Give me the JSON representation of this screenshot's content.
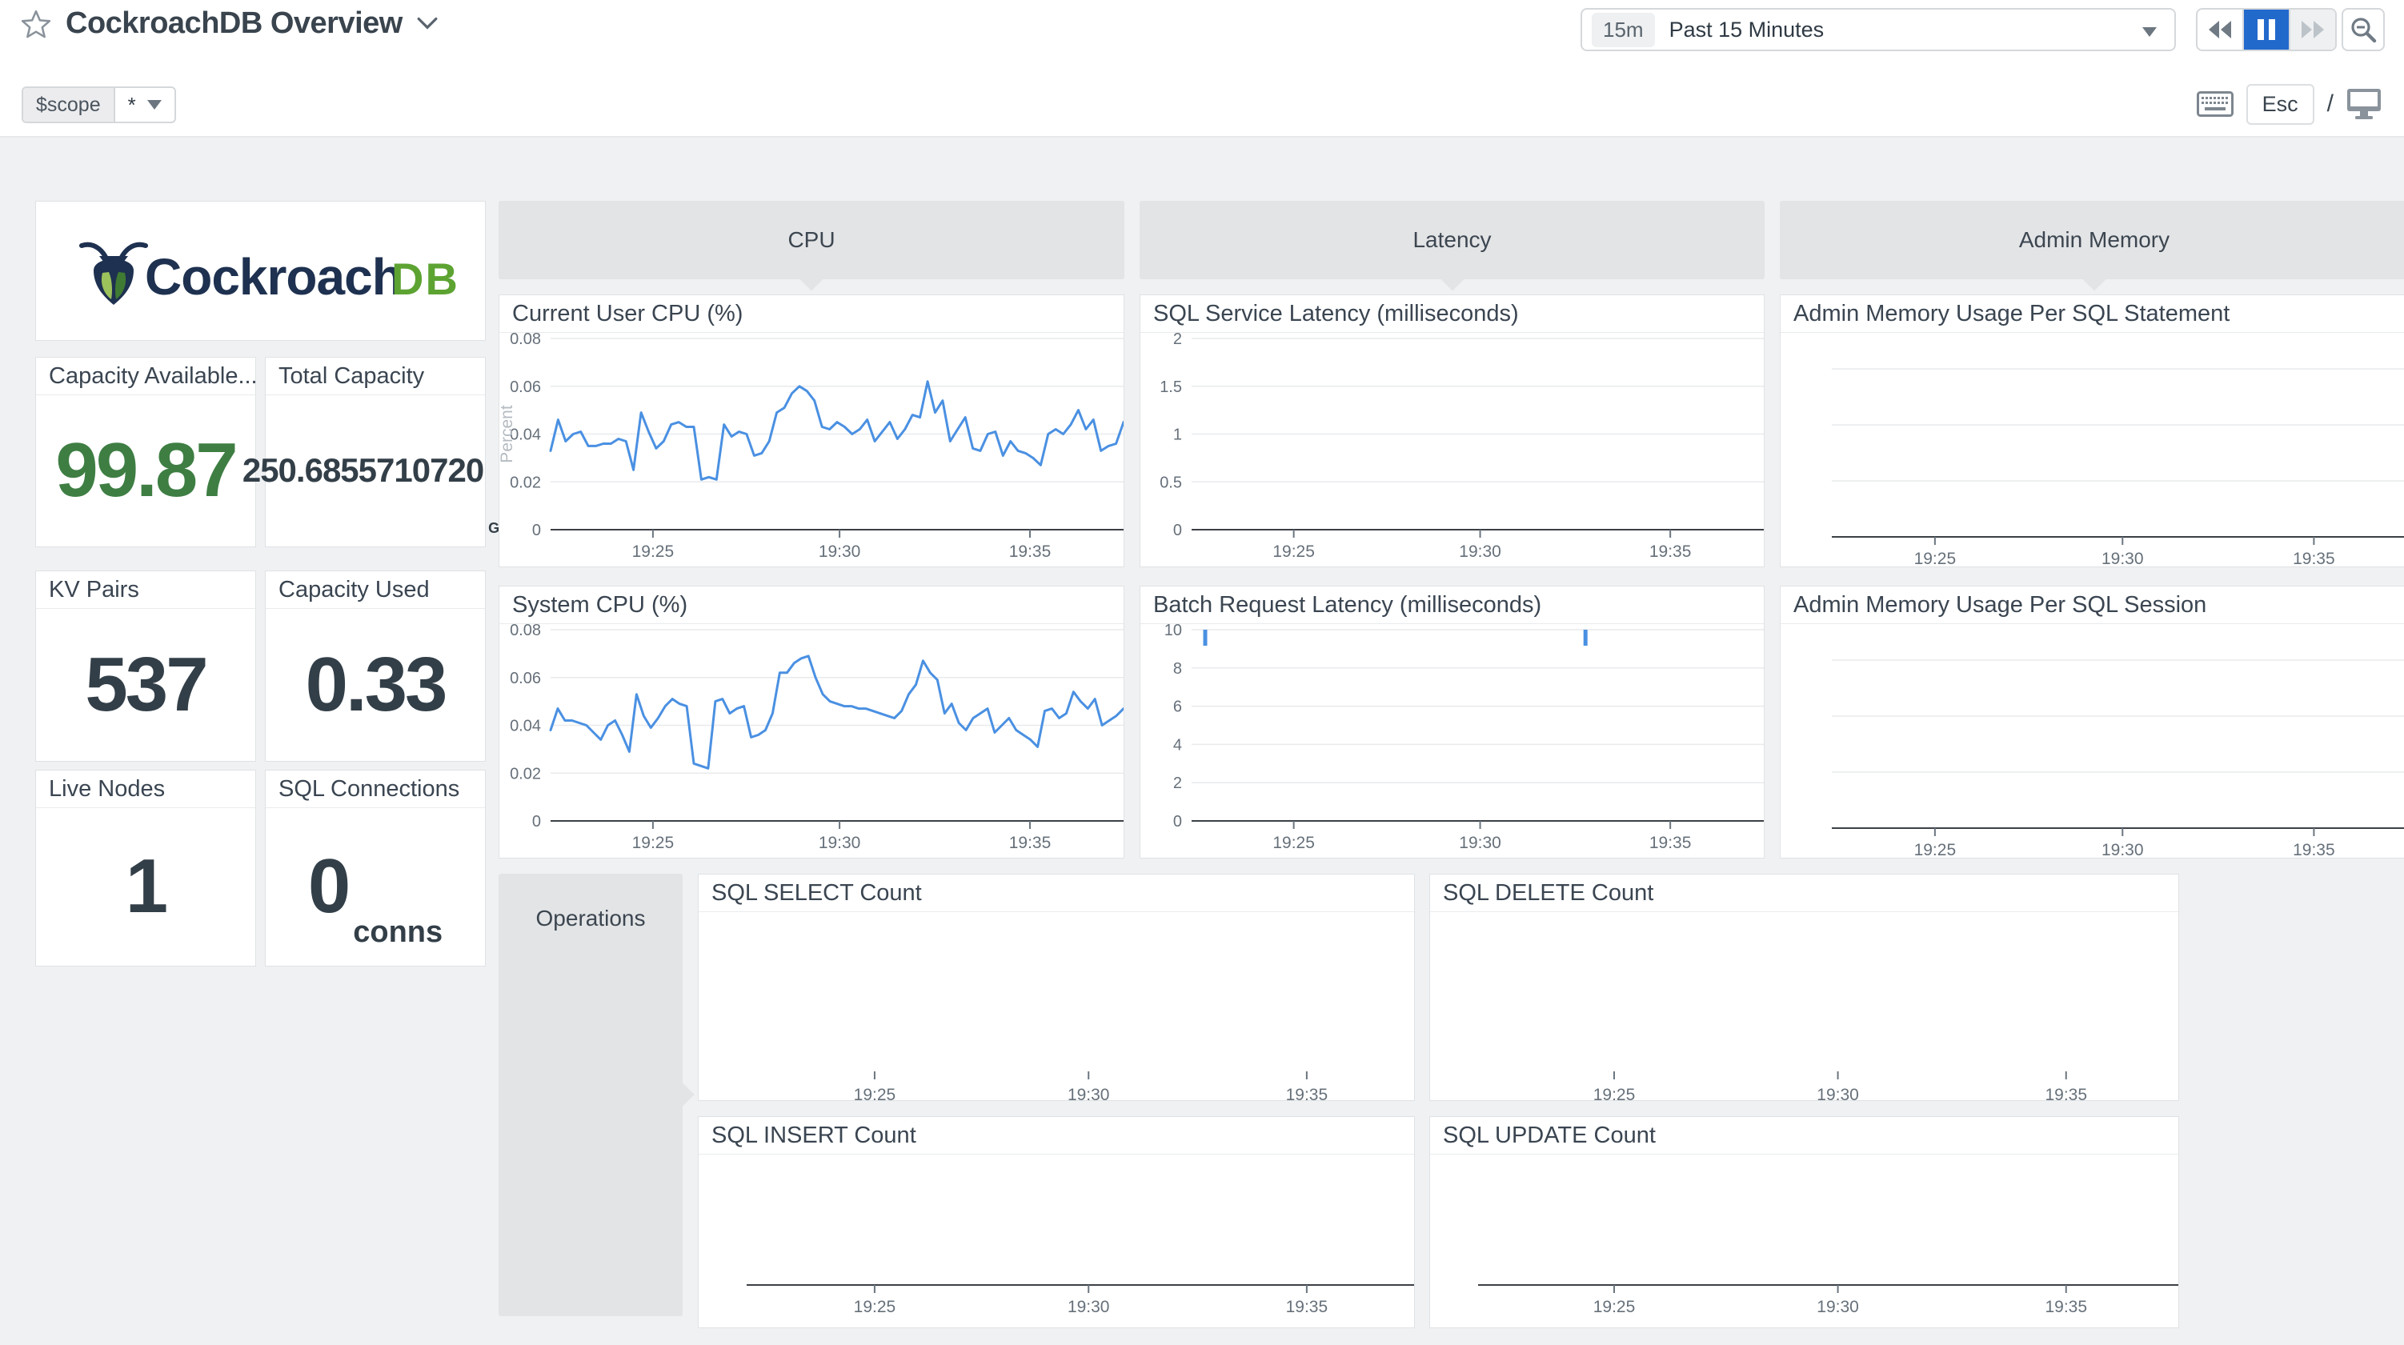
{
  "header": {
    "title": "CockroachDB Overview",
    "time_picker": {
      "badge": "15m",
      "label": "Past 15 Minutes"
    },
    "esc_label": "Esc",
    "slash": "/"
  },
  "template_var": {
    "name": "$scope",
    "value": "*"
  },
  "logo": {
    "word": "Cockroach",
    "suffix": "DB"
  },
  "colors": {
    "accent_blue": "#2269cc",
    "line_blue": "#4a90e2",
    "value_green": "#3e7e43",
    "navy_text": "#333f48",
    "logo_navy": "#1e3150",
    "logo_green": "#5da332"
  },
  "stat_cards": [
    {
      "title": "Capacity Available...",
      "value": "99.87"
    },
    {
      "title": "Total Capacity",
      "value": "250.6855710720",
      "unit": "GB"
    },
    {
      "title": "KV Pairs",
      "value": "537"
    },
    {
      "title": "Capacity Used",
      "value": "0.33"
    },
    {
      "title": "Live Nodes",
      "value": "1"
    },
    {
      "title": "SQL Connections",
      "value": "0",
      "unit": "conns"
    }
  ],
  "groups": {
    "cpu": "CPU",
    "latency": "Latency",
    "admin_memory": "Admin Memory",
    "operations": "Operations"
  },
  "chart_data": [
    {
      "type": "line",
      "kind": "labeled",
      "title": "Current User CPU (%)",
      "ylabel": "Percent",
      "yticks": [
        "0.08",
        "0.06",
        "0.04",
        "0.02",
        "0"
      ],
      "ymax": 0.08,
      "ylim": [
        0,
        0.08
      ],
      "xticks": [
        "19:25",
        "19:30",
        "19:35"
      ],
      "series": [
        0.033,
        0.046,
        0.037,
        0.04,
        0.041,
        0.035,
        0.035,
        0.036,
        0.036,
        0.038,
        0.037,
        0.025,
        0.049,
        0.041,
        0.034,
        0.037,
        0.044,
        0.045,
        0.043,
        0.043,
        0.021,
        0.022,
        0.021,
        0.044,
        0.039,
        0.041,
        0.04,
        0.031,
        0.032,
        0.037,
        0.049,
        0.051,
        0.057,
        0.06,
        0.058,
        0.054,
        0.043,
        0.042,
        0.045,
        0.043,
        0.04,
        0.042,
        0.046,
        0.037,
        0.041,
        0.045,
        0.038,
        0.042,
        0.048,
        0.047,
        0.062,
        0.049,
        0.054,
        0.037,
        0.042,
        0.047,
        0.034,
        0.033,
        0.04,
        0.041,
        0.031,
        0.037,
        0.033,
        0.032,
        0.03,
        0.027,
        0.04,
        0.042,
        0.04,
        0.044,
        0.05,
        0.042,
        0.046,
        0.033,
        0.035,
        0.036,
        0.045
      ]
    },
    {
      "type": "line",
      "kind": "labeled",
      "title": "System CPU (%)",
      "yticks": [
        "0.08",
        "0.06",
        "0.04",
        "0.02",
        "0"
      ],
      "ymax": 0.08,
      "ylim": [
        0,
        0.08
      ],
      "xticks": [
        "19:25",
        "19:30",
        "19:35"
      ],
      "series": [
        0.038,
        0.047,
        0.042,
        0.042,
        0.041,
        0.04,
        0.037,
        0.034,
        0.04,
        0.042,
        0.036,
        0.029,
        0.053,
        0.044,
        0.039,
        0.043,
        0.048,
        0.051,
        0.049,
        0.048,
        0.024,
        0.023,
        0.022,
        0.05,
        0.051,
        0.045,
        0.047,
        0.048,
        0.035,
        0.036,
        0.038,
        0.045,
        0.062,
        0.062,
        0.066,
        0.068,
        0.069,
        0.06,
        0.053,
        0.05,
        0.049,
        0.048,
        0.048,
        0.047,
        0.047,
        0.046,
        0.045,
        0.044,
        0.043,
        0.046,
        0.053,
        0.057,
        0.067,
        0.062,
        0.059,
        0.045,
        0.049,
        0.041,
        0.038,
        0.043,
        0.045,
        0.047,
        0.037,
        0.04,
        0.043,
        0.038,
        0.036,
        0.034,
        0.031,
        0.046,
        0.047,
        0.043,
        0.045,
        0.054,
        0.05,
        0.047,
        0.051,
        0.04,
        0.042,
        0.044,
        0.047
      ]
    },
    {
      "type": "line",
      "kind": "labeled",
      "title": "SQL Service Latency (milliseconds)",
      "yticks": [
        "2",
        "1.5",
        "1",
        "0.5",
        "0"
      ],
      "ymax": 2,
      "ylim": [
        0,
        2
      ],
      "xticks": [
        "19:25",
        "19:30",
        "19:35"
      ],
      "series": []
    },
    {
      "type": "line",
      "kind": "labeled",
      "title": "Batch Request Latency (milliseconds)",
      "yticks": [
        "10",
        "8",
        "6",
        "4",
        "2",
        "0"
      ],
      "ymax": 10,
      "ylim": [
        0,
        10
      ],
      "xticks": [
        "19:25",
        "19:30",
        "19:35"
      ],
      "series": [],
      "markers": [
        {
          "x": 0.104,
          "value": 10
        },
        {
          "x": 0.714,
          "value": 10
        }
      ]
    },
    {
      "type": "line",
      "kind": "unlabeled",
      "title": "Admin Memory Usage Per SQL Statement",
      "yticks": [],
      "xticks": [
        "19:25",
        "19:30",
        "19:35"
      ],
      "series": []
    },
    {
      "type": "line",
      "kind": "unlabeled",
      "title": "Admin Memory Usage Per SQL Session",
      "yticks": [],
      "xticks": [
        "19:25",
        "19:30",
        "19:35"
      ],
      "series": []
    },
    {
      "type": "line",
      "kind": "bare",
      "title": "SQL SELECT Count",
      "yticks": [],
      "xticks": [
        "19:25",
        "19:30",
        "19:35"
      ],
      "series": []
    },
    {
      "type": "line",
      "kind": "bare",
      "title": "SQL DELETE Count",
      "yticks": [],
      "xticks": [
        "19:25",
        "19:30",
        "19:35"
      ],
      "series": []
    },
    {
      "type": "line",
      "kind": "axis",
      "title": "SQL INSERT Count",
      "yticks": [],
      "xticks": [
        "19:25",
        "19:30",
        "19:35"
      ],
      "series": []
    },
    {
      "type": "line",
      "kind": "axis",
      "title": "SQL UPDATE Count",
      "yticks": [],
      "xticks": [
        "19:25",
        "19:30",
        "19:35"
      ],
      "series": []
    }
  ]
}
